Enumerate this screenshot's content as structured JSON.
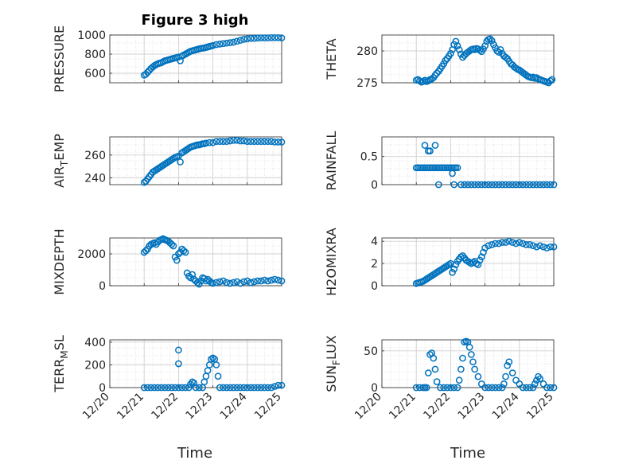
{
  "figure": {
    "title": "Figure 3 high",
    "marker_color": "#0072BD",
    "x_ticks": [
      "12/20",
      "12/21",
      "12/22",
      "12/23",
      "12/24",
      "12/25"
    ],
    "x_title": "Time"
  },
  "chart_data": [
    {
      "type": "scatter",
      "id": "pressure",
      "ylabel": "PRESSURE",
      "ylim": [
        500,
        1000
      ],
      "yticks": [
        600,
        800,
        1000
      ],
      "grid": true,
      "minor_grid": true,
      "xlim": [
        "12/20",
        "12/25"
      ],
      "x": [
        21.0,
        21.05,
        21.1,
        21.15,
        21.2,
        21.25,
        21.3,
        21.35,
        21.4,
        21.45,
        21.5,
        21.55,
        21.6,
        21.65,
        21.7,
        21.75,
        21.8,
        21.85,
        21.9,
        21.95,
        22.0,
        22.05,
        22.1,
        22.15,
        22.2,
        22.25,
        22.3,
        22.35,
        22.4,
        22.45,
        22.5,
        22.55,
        22.6,
        22.65,
        22.7,
        22.75,
        22.8,
        22.85,
        22.9,
        22.95,
        23.0,
        23.1,
        23.2,
        23.3,
        23.4,
        23.5,
        23.6,
        23.7,
        23.8,
        23.9,
        24.0,
        24.1,
        24.2,
        24.3,
        24.4,
        24.5,
        24.6,
        24.7,
        24.8,
        24.9,
        25.0
      ],
      "y": [
        580,
        590,
        610,
        630,
        650,
        665,
        680,
        690,
        700,
        705,
        710,
        720,
        730,
        735,
        740,
        745,
        750,
        755,
        760,
        765,
        770,
        730,
        780,
        790,
        800,
        810,
        820,
        830,
        835,
        840,
        845,
        850,
        855,
        860,
        862,
        865,
        870,
        875,
        880,
        885,
        890,
        900,
        905,
        910,
        915,
        920,
        925,
        935,
        945,
        955,
        960,
        965,
        965,
        968,
        970,
        970,
        970,
        972,
        972,
        972,
        970
      ]
    },
    {
      "type": "scatter",
      "id": "theta",
      "ylabel": "THETA",
      "ylim": [
        275,
        282.5
      ],
      "yticks": [
        275,
        280
      ],
      "grid": true,
      "minor_grid": true,
      "xlim": [
        "12/20",
        "12/25"
      ],
      "x": [
        21.0,
        21.05,
        21.1,
        21.15,
        21.2,
        21.25,
        21.3,
        21.35,
        21.4,
        21.45,
        21.5,
        21.55,
        21.6,
        21.65,
        21.7,
        21.75,
        21.8,
        21.85,
        21.9,
        21.95,
        22.0,
        22.05,
        22.1,
        22.15,
        22.2,
        22.25,
        22.3,
        22.35,
        22.4,
        22.45,
        22.5,
        22.55,
        22.6,
        22.65,
        22.7,
        22.75,
        22.8,
        22.85,
        22.9,
        22.95,
        23.0,
        23.05,
        23.1,
        23.15,
        23.2,
        23.25,
        23.3,
        23.35,
        23.4,
        23.45,
        23.5,
        23.55,
        23.6,
        23.65,
        23.7,
        23.75,
        23.8,
        23.85,
        23.9,
        23.95,
        24.0,
        24.05,
        24.1,
        24.15,
        24.2,
        24.25,
        24.3,
        24.35,
        24.4,
        24.45,
        24.5,
        24.55,
        24.6,
        24.65,
        24.7,
        24.75,
        24.8,
        24.85,
        24.9,
        24.95
      ],
      "y": [
        275.4,
        275.5,
        275.3,
        275.1,
        275.2,
        275.4,
        275.2,
        275.3,
        275.5,
        275.6,
        275.8,
        276.2,
        276.5,
        276.8,
        277.2,
        277.6,
        278.0,
        278.5,
        278.8,
        279.2,
        279.6,
        280.2,
        281.0,
        281.5,
        280.8,
        280.2,
        279.5,
        279.0,
        279.3,
        279.6,
        279.8,
        280.0,
        280.2,
        280.3,
        280.2,
        280.4,
        280.3,
        280.1,
        279.9,
        280.3,
        280.8,
        281.5,
        281.8,
        281.9,
        281.6,
        281.0,
        280.5,
        280.0,
        279.8,
        280.2,
        279.6,
        279.2,
        279.0,
        278.8,
        278.4,
        278.0,
        277.8,
        277.5,
        277.3,
        277.1,
        277.0,
        276.8,
        276.6,
        276.4,
        276.2,
        276.0,
        275.9,
        275.8,
        275.9,
        275.7,
        275.8,
        275.6,
        275.5,
        275.4,
        275.3,
        275.2,
        275.1,
        275.0,
        275.3,
        275.5
      ]
    },
    {
      "type": "scatter",
      "id": "air_temp",
      "ylabel": "AIR_TEMP",
      "ylim": [
        234,
        276
      ],
      "yticks": [
        240,
        260
      ],
      "grid": true,
      "minor_grid": true,
      "xlim": [
        "12/20",
        "12/25"
      ],
      "x": [
        21.0,
        21.05,
        21.1,
        21.15,
        21.2,
        21.25,
        21.3,
        21.35,
        21.4,
        21.45,
        21.5,
        21.55,
        21.6,
        21.65,
        21.7,
        21.75,
        21.8,
        21.85,
        21.9,
        21.95,
        22.0,
        22.05,
        22.1,
        22.15,
        22.2,
        22.25,
        22.3,
        22.35,
        22.4,
        22.45,
        22.5,
        22.55,
        22.6,
        22.65,
        22.7,
        22.75,
        22.8,
        22.9,
        23.0,
        23.1,
        23.2,
        23.3,
        23.4,
        23.5,
        23.6,
        23.7,
        23.8,
        23.9,
        24.0,
        24.1,
        24.2,
        24.3,
        24.4,
        24.5,
        24.6,
        24.7,
        24.8,
        24.9,
        25.0
      ],
      "y": [
        236,
        237,
        239,
        241,
        243,
        245,
        246,
        247,
        248,
        249,
        250,
        251,
        252,
        253,
        254,
        255,
        256,
        257,
        258,
        258.5,
        259,
        254,
        262,
        263,
        264,
        265,
        266,
        267,
        267.5,
        268,
        268.5,
        269,
        269,
        269.5,
        270,
        270,
        270.5,
        271,
        271,
        272,
        272,
        272,
        272,
        272.5,
        273,
        273,
        272.5,
        272.5,
        272,
        272,
        272,
        272,
        272,
        272,
        272,
        272,
        271.5,
        271.5,
        271.5
      ]
    },
    {
      "type": "scatter",
      "id": "rainfall",
      "ylabel": "RAINFALL",
      "ylim": [
        0,
        0.85
      ],
      "yticks": [
        0,
        0.5
      ],
      "grid": true,
      "minor_grid": true,
      "xlim": [
        "12/20",
        "12/25"
      ],
      "x": [
        21.0,
        21.05,
        21.1,
        21.15,
        21.2,
        21.25,
        21.3,
        21.35,
        21.4,
        21.45,
        21.5,
        21.55,
        21.6,
        21.65,
        21.7,
        21.75,
        21.8,
        21.85,
        21.9,
        21.95,
        22.0,
        22.05,
        22.1,
        22.15,
        22.2,
        22.3,
        22.4,
        22.5,
        22.6,
        22.7,
        22.8,
        22.9,
        23.0,
        23.1,
        23.2,
        23.3,
        23.4,
        23.5,
        23.6,
        23.7,
        23.8,
        23.9,
        24.0,
        24.1,
        24.2,
        24.3,
        24.4,
        24.5,
        24.6,
        24.7,
        24.8,
        24.9,
        25.0,
        21.25,
        21.35,
        21.4,
        21.55,
        21.65,
        22.05,
        22.1
      ],
      "y": [
        0.3,
        0.3,
        0.3,
        0.3,
        0.3,
        0.3,
        0.3,
        0.3,
        0.3,
        0.3,
        0.3,
        0.3,
        0.3,
        0.3,
        0.3,
        0.3,
        0.3,
        0.3,
        0.3,
        0.3,
        0.3,
        0.3,
        0.3,
        0.3,
        0.3,
        0,
        0,
        0,
        0,
        0,
        0,
        0,
        0,
        0,
        0,
        0,
        0,
        0,
        0,
        0,
        0,
        0,
        0,
        0,
        0,
        0,
        0,
        0,
        0,
        0,
        0,
        0,
        0,
        0.7,
        0.6,
        0.6,
        0.7,
        0,
        0.2,
        0
      ],
      "y_note": ""
    },
    {
      "type": "scatter",
      "id": "mixdepth",
      "ylabel": "MIXDEPTH",
      "ylim": [
        0,
        3000
      ],
      "yticks": [
        0,
        2000
      ],
      "grid": true,
      "minor_grid": true,
      "xlim": [
        "12/20",
        "12/25"
      ],
      "x": [
        21.0,
        21.05,
        21.1,
        21.15,
        21.2,
        21.25,
        21.3,
        21.35,
        21.4,
        21.45,
        21.5,
        21.55,
        21.6,
        21.65,
        21.7,
        21.75,
        21.8,
        21.85,
        21.9,
        21.95,
        22.0,
        22.05,
        22.1,
        22.15,
        22.2,
        22.25,
        22.3,
        22.35,
        22.4,
        22.45,
        22.5,
        22.55,
        22.6,
        22.65,
        22.7,
        22.75,
        22.8,
        22.85,
        22.9,
        22.95,
        23.0,
        23.1,
        23.2,
        23.3,
        23.4,
        23.5,
        23.6,
        23.7,
        23.8,
        23.9,
        24.0,
        24.1,
        24.2,
        24.3,
        24.4,
        24.5,
        24.6,
        24.7,
        24.8,
        24.9,
        25.0
      ],
      "y": [
        2100,
        2200,
        2300,
        2500,
        2600,
        2650,
        2700,
        2600,
        2750,
        2850,
        2900,
        2950,
        2900,
        2850,
        2800,
        2700,
        2600,
        2500,
        1800,
        1600,
        2000,
        2100,
        2300,
        2200,
        2100,
        800,
        600,
        500,
        700,
        400,
        300,
        200,
        100,
        300,
        500,
        450,
        300,
        400,
        300,
        200,
        150,
        200,
        250,
        300,
        200,
        150,
        200,
        250,
        150,
        250,
        300,
        200,
        250,
        300,
        300,
        350,
        300,
        350,
        400,
        350,
        300
      ]
    },
    {
      "type": "scatter",
      "id": "h2omixra",
      "ylabel": "H2OMIXRA",
      "ylim": [
        0,
        4.3
      ],
      "yticks": [
        0,
        2,
        4
      ],
      "grid": true,
      "minor_grid": true,
      "xlim": [
        "12/20",
        "12/25"
      ],
      "x": [
        21.0,
        21.05,
        21.1,
        21.15,
        21.2,
        21.25,
        21.3,
        21.35,
        21.4,
        21.45,
        21.5,
        21.55,
        21.6,
        21.65,
        21.7,
        21.75,
        21.8,
        21.85,
        21.9,
        21.95,
        22.0,
        22.05,
        22.1,
        22.15,
        22.2,
        22.25,
        22.3,
        22.35,
        22.4,
        22.45,
        22.5,
        22.55,
        22.6,
        22.65,
        22.7,
        22.75,
        22.8,
        22.85,
        22.9,
        22.95,
        23.0,
        23.1,
        23.2,
        23.3,
        23.4,
        23.5,
        23.6,
        23.7,
        23.8,
        23.9,
        24.0,
        24.1,
        24.2,
        24.3,
        24.4,
        24.5,
        24.6,
        24.7,
        24.8,
        24.9,
        25.0
      ],
      "y": [
        0.2,
        0.25,
        0.3,
        0.35,
        0.4,
        0.5,
        0.6,
        0.7,
        0.8,
        0.9,
        1.0,
        1.1,
        1.2,
        1.3,
        1.4,
        1.5,
        1.6,
        1.7,
        1.8,
        1.9,
        2.0,
        1.2,
        1.5,
        1.9,
        2.2,
        2.4,
        2.6,
        2.7,
        2.5,
        2.3,
        2.2,
        2.1,
        2.0,
        2.1,
        2.2,
        2.0,
        1.9,
        2.3,
        2.6,
        3.0,
        3.4,
        3.6,
        3.7,
        3.8,
        3.8,
        3.9,
        3.9,
        4.0,
        3.9,
        3.8,
        3.9,
        3.8,
        3.7,
        3.7,
        3.6,
        3.5,
        3.6,
        3.5,
        3.4,
        3.5,
        3.5
      ]
    },
    {
      "type": "scatter",
      "id": "terr_msl",
      "ylabel": "TERR_MSL",
      "ylim": [
        0,
        420
      ],
      "yticks": [
        0,
        200,
        400
      ],
      "grid": true,
      "minor_grid": true,
      "xlim": [
        "12/20",
        "12/25"
      ],
      "x": [
        21.0,
        21.1,
        21.2,
        21.3,
        21.4,
        21.5,
        21.6,
        21.7,
        21.8,
        21.9,
        22.0,
        22.0,
        22.0,
        22.1,
        22.2,
        22.3,
        22.35,
        22.4,
        22.45,
        22.5,
        22.6,
        22.7,
        22.75,
        22.8,
        22.85,
        22.9,
        22.95,
        23.0,
        23.05,
        23.1,
        23.15,
        23.2,
        23.3,
        23.4,
        23.5,
        23.6,
        23.7,
        23.8,
        23.9,
        24.0,
        24.1,
        24.2,
        24.3,
        24.4,
        24.5,
        24.6,
        24.7,
        24.8,
        24.9,
        25.0
      ],
      "y": [
        0,
        0,
        0,
        0,
        0,
        0,
        0,
        0,
        0,
        0,
        0,
        330,
        210,
        0,
        0,
        0,
        30,
        50,
        40,
        0,
        0,
        0,
        50,
        100,
        150,
        200,
        250,
        260,
        250,
        200,
        100,
        0,
        0,
        0,
        0,
        0,
        0,
        0,
        0,
        0,
        0,
        0,
        0,
        0,
        0,
        0,
        0,
        10,
        20,
        20
      ]
    },
    {
      "type": "scatter",
      "id": "sun_flux",
      "ylabel": "SUN_FLUX",
      "ylim": [
        0,
        65
      ],
      "yticks": [
        0,
        50
      ],
      "grid": true,
      "minor_grid": true,
      "xlim": [
        "12/20",
        "12/25"
      ],
      "x": [
        21.0,
        21.1,
        21.2,
        21.25,
        21.3,
        21.35,
        21.4,
        21.45,
        21.5,
        21.55,
        21.6,
        21.7,
        21.8,
        21.9,
        22.0,
        22.1,
        22.2,
        22.25,
        22.3,
        22.35,
        22.4,
        22.45,
        22.5,
        22.55,
        22.6,
        22.65,
        22.7,
        22.8,
        22.9,
        23.0,
        23.1,
        23.2,
        23.3,
        23.4,
        23.5,
        23.55,
        23.6,
        23.65,
        23.7,
        23.8,
        23.9,
        24.0,
        24.1,
        24.2,
        24.3,
        24.4,
        24.45,
        24.5,
        24.55,
        24.6,
        24.7,
        24.8,
        24.9,
        25.0
      ],
      "y": [
        0,
        0,
        0,
        0,
        0,
        20,
        45,
        47,
        40,
        25,
        8,
        0,
        0,
        0,
        0,
        0,
        0,
        10,
        25,
        40,
        62,
        63,
        62,
        55,
        45,
        35,
        25,
        15,
        5,
        0,
        0,
        0,
        0,
        0,
        0,
        5,
        15,
        30,
        35,
        20,
        10,
        5,
        0,
        0,
        0,
        0,
        5,
        10,
        15,
        12,
        5,
        0,
        0,
        0
      ]
    }
  ]
}
